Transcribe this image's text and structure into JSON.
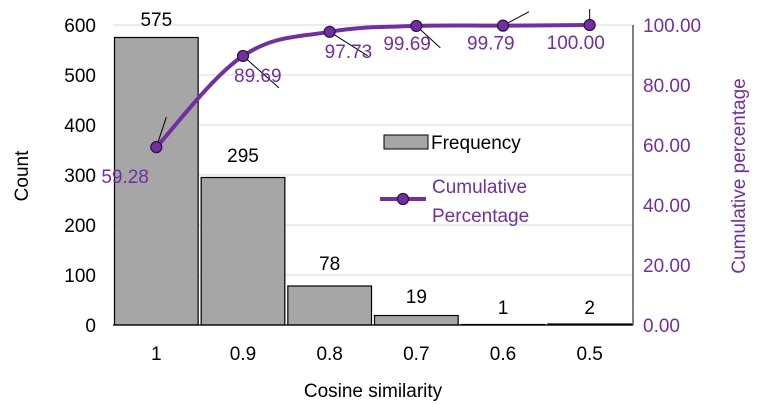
{
  "chart_data": {
    "type": "bar",
    "categories": [
      "1",
      "0.9",
      "0.8",
      "0.7",
      "0.6",
      "0.5"
    ],
    "series": [
      {
        "name": "Frequency",
        "type": "bar",
        "axis": "left",
        "values": [
          575,
          295,
          78,
          19,
          1,
          2
        ],
        "labels": [
          "575",
          "295",
          "78",
          "19",
          "1",
          "2"
        ],
        "color": "#a6a6a6"
      },
      {
        "name": "Cumulative Percentage",
        "type": "line",
        "axis": "right",
        "values": [
          59.28,
          89.69,
          97.73,
          99.69,
          99.79,
          100.0
        ],
        "labels": [
          "59.28",
          "89.69",
          "97.73",
          "99.69",
          "99.79",
          "100.00"
        ],
        "color": "#7030a0"
      }
    ],
    "xlabel": "Cosine similarity",
    "ylabel": "Count",
    "y2label": "Cumulative percentage",
    "ylim": [
      0,
      600
    ],
    "y2lim": [
      0,
      100
    ],
    "yticks": [
      "0",
      "100",
      "200",
      "300",
      "400",
      "500",
      "600"
    ],
    "y2ticks": [
      "0.00",
      "20.00",
      "40.00",
      "60.00",
      "80.00",
      "100.00"
    ],
    "legend": {
      "placement": "center-right",
      "entries": [
        "Frequency",
        "Cumulative",
        "Percentage"
      ]
    },
    "grid": "horizontal"
  }
}
